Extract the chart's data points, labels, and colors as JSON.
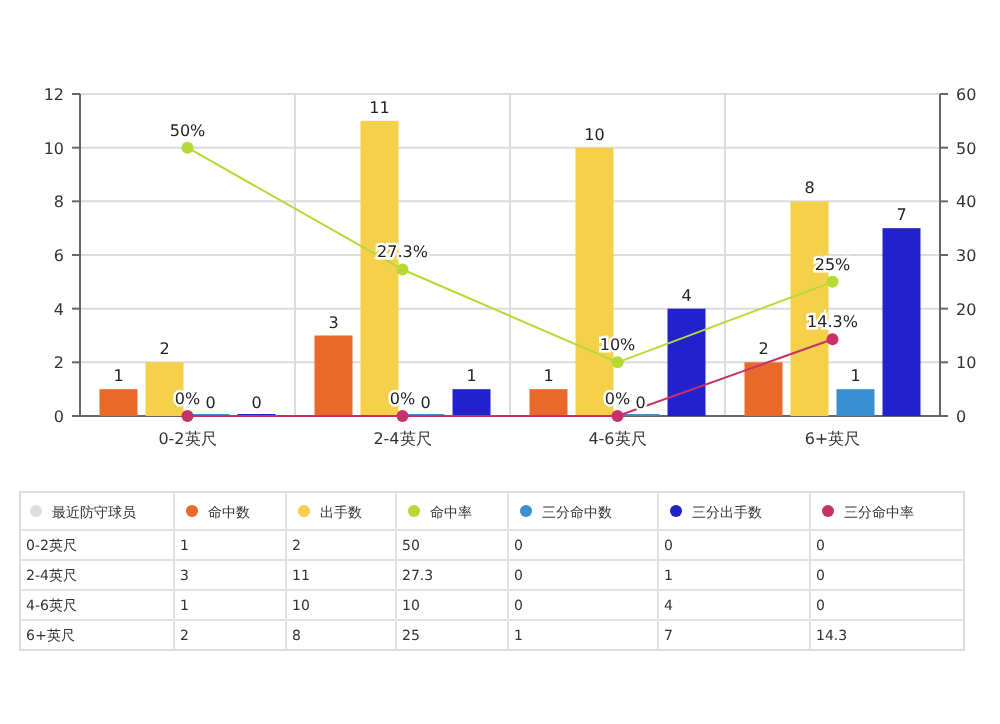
{
  "chart_data": [
    {
      "type": "bar",
      "categories": [
        "0-2英尺",
        "2-4英尺",
        "4-6英尺",
        "6+英尺"
      ],
      "legend_title": "最近防守球员",
      "series": [
        {
          "name": "命中数",
          "color": "#e8692a",
          "values": [
            1,
            3,
            1,
            2
          ]
        },
        {
          "name": "出手数",
          "color": "#f5d04a",
          "values": [
            2,
            11,
            10,
            8
          ]
        },
        {
          "name": "命中率",
          "type": "line",
          "axis": "y2",
          "marker": "circle",
          "color": "#b5d935",
          "values": [
            50,
            27.3,
            10,
            25
          ],
          "value_labels": [
            "50%",
            "27.3%",
            "10%",
            "25%"
          ]
        },
        {
          "name": "三分命中数",
          "color": "#3a8fd0",
          "values": [
            0,
            0,
            0,
            1
          ]
        },
        {
          "name": "三分出手数",
          "color": "#2222cc",
          "values": [
            0,
            1,
            4,
            7
          ]
        },
        {
          "name": "三分命中率",
          "type": "line",
          "axis": "y2",
          "marker": "circle",
          "color": "#c8306a",
          "values": [
            0,
            0,
            0,
            14.3
          ],
          "value_labels": [
            "0%",
            "0%",
            "0%",
            "14.3%"
          ]
        }
      ],
      "ylim": [
        0,
        12
      ],
      "yticks": [
        0,
        2,
        4,
        6,
        8,
        10,
        12
      ],
      "y2lim": [
        0,
        60
      ],
      "y2ticks": [
        0,
        10,
        20,
        30,
        40,
        50,
        60
      ],
      "grid": true,
      "legend": "bottom",
      "data_labels": true
    },
    {
      "type": "other",
      "categories": [
        "0-2英尺",
        "2-4英尺",
        "4-6英尺",
        "6+英尺"
      ],
      "series": [
        {
          "color": "#333333",
          "values": [
            1,
            3,
            1,
            2
          ]
        },
        {
          "color": "#333333",
          "values": [
            2,
            11,
            10,
            8
          ]
        },
        {
          "color": "#333333",
          "values": [
            50,
            27.3,
            10,
            25
          ]
        },
        {
          "color": "#333333",
          "values": [
            0,
            0,
            0,
            1
          ]
        },
        {
          "color": "#333333",
          "values": [
            0,
            1,
            4,
            7
          ]
        },
        {
          "color": "#333333",
          "values": [
            0,
            0,
            0,
            14.3
          ]
        }
      ],
      "data_labels": true
    }
  ]
}
